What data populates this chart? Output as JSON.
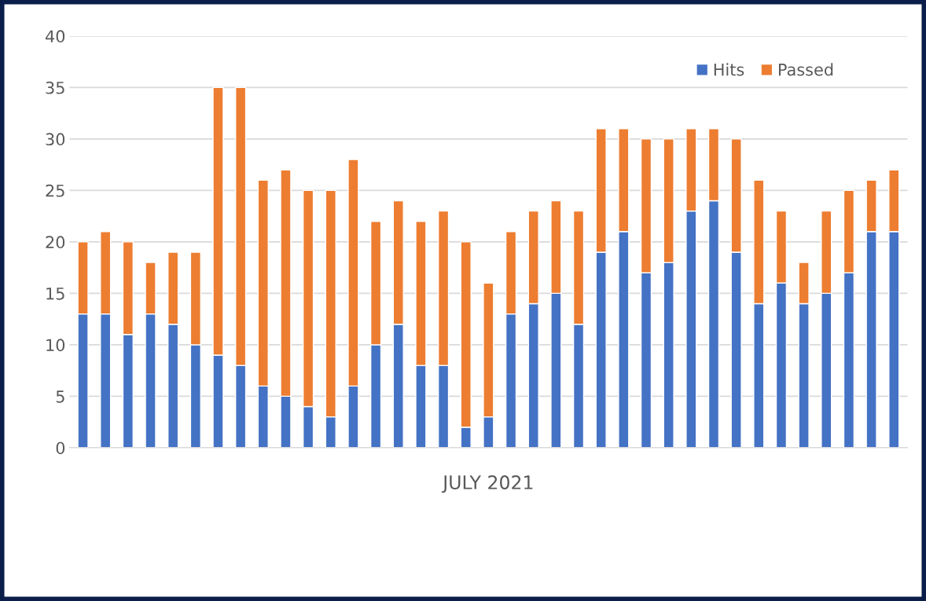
{
  "chart_data": {
    "type": "bar",
    "stacked": true,
    "xlabel": "JULY 2021",
    "categories": [
      null,
      null,
      null,
      null,
      null,
      null,
      null,
      null,
      null,
      null,
      null,
      null,
      null,
      null,
      null,
      null,
      null,
      null,
      null,
      null,
      null,
      null,
      null,
      null,
      null,
      null,
      null,
      null,
      null,
      null,
      null,
      null,
      null,
      null,
      null,
      null,
      null
    ],
    "series": [
      {
        "name": "Hits",
        "color": "#4472c4",
        "values": [
          13,
          13,
          11,
          13,
          12,
          10,
          9,
          8,
          6,
          5,
          4,
          3,
          6,
          10,
          12,
          8,
          8,
          2,
          3,
          13,
          14,
          15,
          12,
          19,
          21,
          17,
          18,
          23,
          24,
          19,
          14,
          16,
          14,
          15,
          17,
          21,
          21
        ]
      },
      {
        "name": "Passed",
        "color": "#ed7d31",
        "values": [
          7,
          8,
          9,
          5,
          7,
          9,
          26,
          27,
          20,
          22,
          21,
          22,
          22,
          12,
          12,
          14,
          15,
          18,
          13,
          8,
          9,
          9,
          11,
          12,
          10,
          13,
          12,
          8,
          7,
          11,
          12,
          7,
          4,
          8,
          8,
          5,
          6
        ]
      }
    ],
    "ylim": [
      0,
      40
    ],
    "yticks": [
      0,
      5,
      10,
      15,
      20,
      25,
      30,
      35,
      40
    ],
    "grid": "y",
    "legend": "top right",
    "tick_labels": "y"
  }
}
